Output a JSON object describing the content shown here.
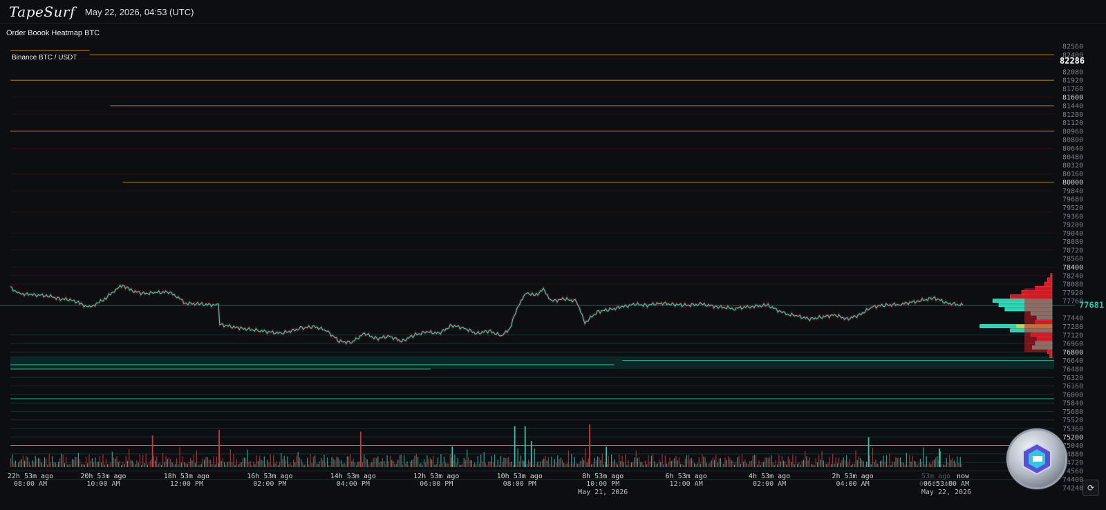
{
  "header": {
    "logo": "TapeSurf",
    "datetime": "May 22, 2026, 04:53 (UTC)"
  },
  "panel": {
    "title": "Order Boook Heatmap BTC",
    "pair": "Binance BTC / USDT"
  },
  "chart_data": {
    "type": "heatmap",
    "title": "Order Boook Heatmap BTC",
    "subtitle": "Binance BTC / USDT",
    "ylim": [
      74240,
      82560
    ],
    "y_ticks": [
      82560,
      82400,
      82240,
      82080,
      81920,
      81760,
      81600,
      81440,
      81280,
      81120,
      80960,
      80800,
      80640,
      80480,
      80320,
      80160,
      80000,
      79840,
      79680,
      79520,
      79360,
      79200,
      79040,
      78880,
      78720,
      78560,
      78400,
      78240,
      78080,
      77920,
      77760,
      77600,
      77440,
      77280,
      77120,
      76960,
      76800,
      76640,
      76480,
      76320,
      76160,
      76000,
      75840,
      75680,
      75520,
      75360,
      75200,
      75040,
      74880,
      74720,
      74560,
      74400,
      74240
    ],
    "y_ticks_bright": [
      81600,
      80000,
      78400,
      76800,
      75200
    ],
    "current_price": 77681,
    "marked_price": 82286,
    "price_axis_labels": [
      {
        "price": 82560,
        "label": "82560"
      },
      {
        "price": 82400,
        "label": "82400"
      },
      {
        "price": 82286,
        "label": "82286"
      },
      {
        "price": 82080,
        "label": "82080"
      },
      {
        "price": 81920,
        "label": "81920"
      },
      {
        "price": 81760,
        "label": "81760"
      },
      {
        "price": 81600,
        "label": "81600"
      },
      {
        "price": 81440,
        "label": "81440"
      },
      {
        "price": 81280,
        "label": "81280"
      },
      {
        "price": 81120,
        "label": "81120"
      },
      {
        "price": 80960,
        "label": "80960"
      },
      {
        "price": 80800,
        "label": "80800"
      },
      {
        "price": 80640,
        "label": "80640"
      },
      {
        "price": 80480,
        "label": "80480"
      },
      {
        "price": 80320,
        "label": "80320"
      },
      {
        "price": 80160,
        "label": "80160"
      },
      {
        "price": 80000,
        "label": "80000"
      },
      {
        "price": 79840,
        "label": "79840"
      },
      {
        "price": 79680,
        "label": "79680"
      },
      {
        "price": 79520,
        "label": "79520"
      },
      {
        "price": 79360,
        "label": "79360"
      },
      {
        "price": 79200,
        "label": "79200"
      },
      {
        "price": 79040,
        "label": "79040"
      },
      {
        "price": 78880,
        "label": "78880"
      },
      {
        "price": 78720,
        "label": "78720"
      },
      {
        "price": 78560,
        "label": "78560"
      },
      {
        "price": 78400,
        "label": "78400"
      },
      {
        "price": 78240,
        "label": "78240"
      },
      {
        "price": 78080,
        "label": "78080"
      },
      {
        "price": 77920,
        "label": "77920"
      },
      {
        "price": 77760,
        "label": "77760"
      },
      {
        "price": 77681,
        "label": "77681"
      },
      {
        "price": 77440,
        "label": "77440"
      },
      {
        "price": 77280,
        "label": "77280"
      },
      {
        "price": 77120,
        "label": "77120"
      },
      {
        "price": 76960,
        "label": "76960"
      },
      {
        "price": 76800,
        "label": "76800"
      },
      {
        "price": 76640,
        "label": "76640"
      },
      {
        "price": 76480,
        "label": "76480"
      },
      {
        "price": 76320,
        "label": "76320"
      },
      {
        "price": 76160,
        "label": "76160"
      },
      {
        "price": 76000,
        "label": "76000"
      },
      {
        "price": 75840,
        "label": "75840"
      },
      {
        "price": 75680,
        "label": "75680"
      },
      {
        "price": 75520,
        "label": "75520"
      },
      {
        "price": 75360,
        "label": "75360"
      },
      {
        "price": 75200,
        "label": "75200"
      },
      {
        "price": 75040,
        "label": "75040"
      },
      {
        "price": 74880,
        "label": "74880"
      },
      {
        "price": 74720,
        "label": "74720"
      },
      {
        "price": 74560,
        "label": "74560"
      },
      {
        "price": 74400,
        "label": "74400"
      },
      {
        "price": 74240,
        "label": "74240"
      }
    ],
    "x_ticks": [
      {
        "t": 0,
        "label": "22h 53m ago",
        "sub": "08:00 AM",
        "date": ""
      },
      {
        "t": 2,
        "label": "20h 53m ago",
        "sub": "10:00 AM",
        "date": ""
      },
      {
        "t": 4,
        "label": "18h 53m ago",
        "sub": "12:00 PM",
        "date": ""
      },
      {
        "t": 6,
        "label": "16h 53m ago",
        "sub": "02:00 PM",
        "date": ""
      },
      {
        "t": 8,
        "label": "14h 53m ago",
        "sub": "04:00 PM",
        "date": ""
      },
      {
        "t": 10,
        "label": "12h 53m ago",
        "sub": "06:00 PM",
        "date": ""
      },
      {
        "t": 12,
        "label": "10h 53m ago",
        "sub": "08:00 PM",
        "date": ""
      },
      {
        "t": 14,
        "label": "8h 53m ago",
        "sub": "10:00 PM",
        "date": "May 21, 2026"
      },
      {
        "t": 16,
        "label": "6h 53m ago",
        "sub": "12:00 AM",
        "date": ""
      },
      {
        "t": 18,
        "label": "4h 53m ago",
        "sub": "02:00 AM",
        "date": ""
      },
      {
        "t": 20,
        "label": "2h 53m ago",
        "sub": "04:00 AM",
        "date": ""
      },
      {
        "t": 22,
        "label": "53m ago",
        "sub": "06:00 AM",
        "date": "",
        "dim": true
      },
      {
        "t": 22.88,
        "label": "now",
        "sub": "06:53:00 AM",
        "date": "May 22, 2026"
      }
    ],
    "price_series": [
      [
        0,
        78020
      ],
      [
        0.2,
        77900
      ],
      [
        0.5,
        77880
      ],
      [
        0.9,
        77860
      ],
      [
        1.2,
        77800
      ],
      [
        1.5,
        77780
      ],
      [
        1.7,
        77700
      ],
      [
        1.9,
        77640
      ],
      [
        2.1,
        77720
      ],
      [
        2.3,
        77820
      ],
      [
        2.5,
        77960
      ],
      [
        2.7,
        78060
      ],
      [
        2.9,
        77960
      ],
      [
        3.2,
        77900
      ],
      [
        3.5,
        77920
      ],
      [
        3.8,
        77930
      ],
      [
        4.0,
        77850
      ],
      [
        4.2,
        77720
      ],
      [
        4.6,
        77700
      ],
      [
        5.0,
        77680
      ],
      [
        5.03,
        77320
      ],
      [
        5.5,
        77250
      ],
      [
        6.0,
        77200
      ],
      [
        6.5,
        77150
      ],
      [
        7.0,
        77250
      ],
      [
        7.3,
        77280
      ],
      [
        7.6,
        77200
      ],
      [
        7.9,
        77000
      ],
      [
        8.2,
        76980
      ],
      [
        8.5,
        77150
      ],
      [
        8.8,
        77050
      ],
      [
        9.1,
        77100
      ],
      [
        9.4,
        77000
      ],
      [
        9.7,
        77120
      ],
      [
        10.0,
        77180
      ],
      [
        10.3,
        77150
      ],
      [
        10.6,
        77300
      ],
      [
        10.9,
        77250
      ],
      [
        11.2,
        77150
      ],
      [
        11.5,
        77200
      ],
      [
        11.8,
        77100
      ],
      [
        12.0,
        77250
      ],
      [
        12.2,
        77680
      ],
      [
        12.4,
        77920
      ],
      [
        12.6,
        77860
      ],
      [
        12.8,
        77980
      ],
      [
        13.0,
        77760
      ],
      [
        13.3,
        77800
      ],
      [
        13.6,
        77760
      ],
      [
        13.8,
        77350
      ],
      [
        14.1,
        77560
      ],
      [
        14.4,
        77600
      ],
      [
        14.7,
        77650
      ],
      [
        15.0,
        77700
      ],
      [
        15.3,
        77680
      ],
      [
        15.6,
        77720
      ],
      [
        15.9,
        77700
      ],
      [
        16.2,
        77680
      ],
      [
        16.6,
        77700
      ],
      [
        17.0,
        77650
      ],
      [
        17.4,
        77620
      ],
      [
        17.8,
        77660
      ],
      [
        18.2,
        77680
      ],
      [
        18.6,
        77520
      ],
      [
        18.9,
        77480
      ],
      [
        19.2,
        77420
      ],
      [
        19.5,
        77460
      ],
      [
        19.8,
        77500
      ],
      [
        20.1,
        77420
      ],
      [
        20.4,
        77500
      ],
      [
        20.7,
        77650
      ],
      [
        21.0,
        77680
      ],
      [
        21.4,
        77700
      ],
      [
        21.8,
        77760
      ],
      [
        22.2,
        77820
      ],
      [
        22.5,
        77720
      ],
      [
        22.88,
        77681
      ]
    ],
    "orange_walls": [
      {
        "price": 82480,
        "from": 0,
        "to": 1.9
      },
      {
        "price": 82400,
        "from": 1.9,
        "to": 25.4
      },
      {
        "price": 81920,
        "from": 0,
        "to": 25.4
      },
      {
        "price": 81440,
        "from": 2.4,
        "to": 25.4
      },
      {
        "price": 80960,
        "from": 0,
        "to": 25.4
      },
      {
        "price": 80000,
        "from": 2.7,
        "to": 25.4
      }
    ],
    "green_walls": [
      {
        "price": 76560,
        "from": 0,
        "to": 14.5
      },
      {
        "price": 76480,
        "from": 0,
        "to": 10.1
      },
      {
        "price": 76640,
        "from": 14.7,
        "to": 25.4
      },
      {
        "price": 75920,
        "from": 0,
        "to": 25.4
      },
      {
        "price": 75040,
        "from": 0,
        "to": 25.4
      }
    ],
    "depth_profile": [
      {
        "price": 78240,
        "side": "ask",
        "size": 0.02
      },
      {
        "price": 78160,
        "side": "ask",
        "size": 0.06
      },
      {
        "price": 78080,
        "side": "ask",
        "size": 0.1
      },
      {
        "price": 78000,
        "side": "ask",
        "size": 0.22
      },
      {
        "price": 77920,
        "side": "ask",
        "size": 0.4
      },
      {
        "price": 77840,
        "side": "ask",
        "size": 0.55
      },
      {
        "price": 77760,
        "side": "bid",
        "size": 0.78
      },
      {
        "price": 77680,
        "side": "bid",
        "size": 0.7
      },
      {
        "price": 77600,
        "side": "bid",
        "size": 0.62
      },
      {
        "price": 77520,
        "side": "bid",
        "size": 0.28
      },
      {
        "price": 77440,
        "side": "bid",
        "size": 0.2
      },
      {
        "price": 77360,
        "side": "ask",
        "size": 0.22
      },
      {
        "price": 77280,
        "side": "bid",
        "size": 0.95
      },
      {
        "price": 77200,
        "side": "bid",
        "size": 0.55
      },
      {
        "price": 77120,
        "side": "ask",
        "size": 0.28
      },
      {
        "price": 77040,
        "side": "ask",
        "size": 0.2
      },
      {
        "price": 76960,
        "side": "bid",
        "size": 0.22
      },
      {
        "price": 76880,
        "side": "bid",
        "size": 0.26
      },
      {
        "price": 76800,
        "side": "ask",
        "size": 0.06
      },
      {
        "price": 76720,
        "side": "ask",
        "size": 0.03
      }
    ],
    "volume_spikes": [
      {
        "t": 5.0,
        "v": 1.0,
        "side": "sell"
      },
      {
        "t": 3.4,
        "v": 0.85,
        "side": "sell"
      },
      {
        "t": 8.4,
        "v": 0.95,
        "side": "sell"
      },
      {
        "t": 12.1,
        "v": 1.1,
        "side": "buy"
      },
      {
        "t": 12.35,
        "v": 1.1,
        "side": "buy"
      },
      {
        "t": 12.5,
        "v": 0.7,
        "side": "buy"
      },
      {
        "t": 13.9,
        "v": 1.15,
        "side": "sell"
      },
      {
        "t": 20.6,
        "v": 0.8,
        "side": "buy"
      },
      {
        "t": 10.6,
        "v": 0.55,
        "side": "buy"
      },
      {
        "t": 14.3,
        "v": 0.55,
        "side": "buy"
      },
      {
        "t": 22.3,
        "v": 0.5,
        "side": "buy"
      }
    ],
    "colors": {
      "background": "#0d0e12",
      "orange_wall": "#e59b1e",
      "green_wall": "#3fe3a6",
      "price_up": "#2fc7b0",
      "price_down": "#d6343b",
      "bid_profile": "#2ad2b4",
      "ask_profile": "#d01c24",
      "axis_text": "#7a7d86"
    }
  },
  "controls": {
    "reset_icon": "refresh-icon",
    "reset_symbol": "⟳"
  }
}
